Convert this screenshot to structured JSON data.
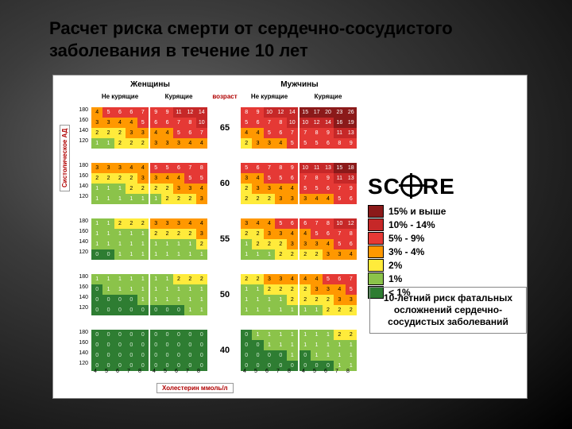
{
  "title": "Расчет риска смерти от сердечно-сосудистого заболевания в течение 10 лет",
  "chart": {
    "sex_headers": [
      "Женщины",
      "Мужчины"
    ],
    "smoke_headers": [
      "Не курящие",
      "Курящие",
      "Не курящие",
      "Курящие"
    ],
    "age_header": "возраст",
    "y_axis": "Систолическое АД",
    "x_axis": "Холестерин ммоль/л",
    "bp_ticks": [
      180,
      160,
      140,
      120
    ],
    "chol_ticks": [
      4,
      5,
      6,
      7,
      8
    ],
    "mgdl": "150 200 250 300",
    "mgdl_unit": "mg/dl",
    "ages": [
      65,
      60,
      55,
      50,
      40
    ],
    "palette": {
      "g3": "#2e7d32",
      "g2": "#4caf50",
      "g1": "#8bc34a",
      "y2": "#ffeb3b",
      "y1": "#ffc107",
      "o2": "#ff9800",
      "o1": "#f57c00",
      "r3": "#e53935",
      "r2": "#c62828",
      "r1": "#8b1a1a"
    },
    "data": {
      "65": {
        "wn": [
          [
            4,
            5,
            6,
            6,
            7
          ],
          [
            3,
            3,
            4,
            4,
            5
          ],
          [
            2,
            2,
            2,
            3,
            3
          ],
          [
            1,
            1,
            2,
            2,
            2
          ]
        ],
        "ws": [
          [
            9,
            9,
            11,
            12,
            14
          ],
          [
            6,
            6,
            7,
            8,
            10
          ],
          [
            4,
            4,
            5,
            6,
            7
          ],
          [
            3,
            3,
            3,
            4,
            4
          ]
        ],
        "mn": [
          [
            8,
            9,
            10,
            12,
            14
          ],
          [
            5,
            6,
            7,
            8,
            10
          ],
          [
            4,
            4,
            5,
            6,
            7
          ],
          [
            2,
            3,
            3,
            4,
            5
          ]
        ],
        "ms": [
          [
            15,
            17,
            20,
            23,
            26
          ],
          [
            10,
            12,
            14,
            16,
            19
          ],
          [
            7,
            8,
            9,
            11,
            13
          ],
          [
            5,
            5,
            6,
            8,
            9
          ]
        ]
      },
      "60": {
        "wn": [
          [
            3,
            3,
            3,
            4,
            4
          ],
          [
            2,
            2,
            2,
            2,
            3
          ],
          [
            1,
            1,
            1,
            2,
            2
          ],
          [
            1,
            1,
            1,
            1,
            1
          ]
        ],
        "ws": [
          [
            5,
            5,
            6,
            7,
            8
          ],
          [
            3,
            4,
            4,
            5,
            5
          ],
          [
            2,
            2,
            3,
            3,
            4
          ],
          [
            1,
            2,
            2,
            2,
            3
          ]
        ],
        "mn": [
          [
            5,
            6,
            7,
            8,
            9
          ],
          [
            3,
            4,
            5,
            5,
            6
          ],
          [
            2,
            3,
            3,
            4,
            4
          ],
          [
            2,
            2,
            2,
            3,
            3
          ]
        ],
        "ms": [
          [
            10,
            11,
            13,
            15,
            18
          ],
          [
            7,
            8,
            9,
            11,
            13
          ],
          [
            5,
            5,
            6,
            7,
            9
          ],
          [
            3,
            4,
            4,
            5,
            6
          ]
        ]
      },
      "55": {
        "wn": [
          [
            1,
            1,
            2,
            2,
            2
          ],
          [
            1,
            1,
            1,
            1,
            1
          ],
          [
            1,
            1,
            1,
            1,
            1
          ],
          [
            0,
            0,
            1,
            1,
            1
          ]
        ],
        "ws": [
          [
            3,
            3,
            3,
            4,
            4
          ],
          [
            2,
            2,
            2,
            2,
            3
          ],
          [
            1,
            1,
            1,
            1,
            2
          ],
          [
            1,
            1,
            1,
            1,
            1
          ]
        ],
        "mn": [
          [
            3,
            4,
            4,
            5,
            6
          ],
          [
            2,
            2,
            3,
            3,
            4
          ],
          [
            1,
            2,
            2,
            2,
            3
          ],
          [
            1,
            1,
            1,
            2,
            2
          ]
        ],
        "ms": [
          [
            6,
            7,
            8,
            10,
            12
          ],
          [
            4,
            5,
            6,
            7,
            8
          ],
          [
            3,
            3,
            4,
            5,
            6
          ],
          [
            2,
            2,
            3,
            3,
            4
          ]
        ]
      },
      "50": {
        "wn": [
          [
            1,
            1,
            1,
            1,
            1
          ],
          [
            0,
            1,
            1,
            1,
            1
          ],
          [
            0,
            0,
            0,
            0,
            1
          ],
          [
            0,
            0,
            0,
            0,
            0
          ]
        ],
        "ws": [
          [
            1,
            1,
            2,
            2,
            2
          ],
          [
            1,
            1,
            1,
            1,
            1
          ],
          [
            1,
            1,
            1,
            1,
            1
          ],
          [
            0,
            0,
            0,
            1,
            1
          ]
        ],
        "mn": [
          [
            2,
            2,
            3,
            3,
            4
          ],
          [
            1,
            1,
            2,
            2,
            2
          ],
          [
            1,
            1,
            1,
            1,
            2
          ],
          [
            1,
            1,
            1,
            1,
            1
          ]
        ],
        "ms": [
          [
            4,
            4,
            5,
            6,
            7
          ],
          [
            2,
            3,
            3,
            4,
            5
          ],
          [
            2,
            2,
            2,
            3,
            3
          ],
          [
            1,
            1,
            2,
            2,
            2
          ]
        ]
      },
      "40": {
        "wn": [
          [
            0,
            0,
            0,
            0,
            0
          ],
          [
            0,
            0,
            0,
            0,
            0
          ],
          [
            0,
            0,
            0,
            0,
            0
          ],
          [
            0,
            0,
            0,
            0,
            0
          ]
        ],
        "ws": [
          [
            0,
            0,
            0,
            0,
            0
          ],
          [
            0,
            0,
            0,
            0,
            0
          ],
          [
            0,
            0,
            0,
            0,
            0
          ],
          [
            0,
            0,
            0,
            0,
            0
          ]
        ],
        "mn": [
          [
            0,
            1,
            1,
            1,
            1
          ],
          [
            0,
            0,
            1,
            1,
            1
          ],
          [
            0,
            0,
            0,
            0,
            1
          ],
          [
            0,
            0,
            0,
            0,
            0
          ]
        ],
        "ms": [
          [
            1,
            1,
            1,
            2,
            2
          ],
          [
            1,
            1,
            1,
            1,
            1
          ],
          [
            0,
            1,
            1,
            1,
            1
          ],
          [
            0,
            0,
            0,
            1,
            1
          ]
        ]
      }
    }
  },
  "legend": {
    "logo_text_a": "SC",
    "logo_text_b": "RE",
    "items": [
      {
        "color": "#8b1a1a",
        "label": "15% и выше"
      },
      {
        "color": "#c62828",
        "label": "10% - 14%"
      },
      {
        "color": "#e53935",
        "label": "5% - 9%"
      },
      {
        "color": "#ff9800",
        "label": "3% - 4%"
      },
      {
        "color": "#ffeb3b",
        "label": "2%"
      },
      {
        "color": "#8bc34a",
        "label": "1%"
      },
      {
        "color": "#2e7d32",
        "label": "< 1%"
      }
    ]
  },
  "description": "10-летний риск фатальных осложнений сердечно-сосудистых заболеваний"
}
